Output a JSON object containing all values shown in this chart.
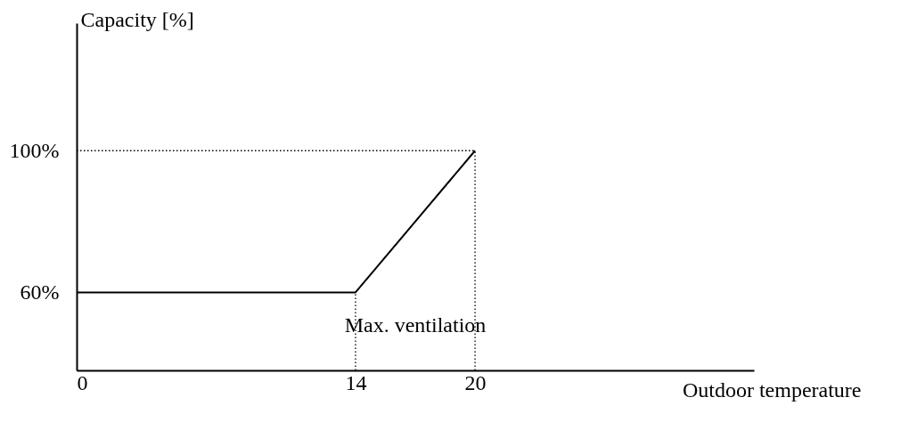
{
  "chart_data": {
    "type": "line",
    "xlabel": "Outdoor temperature",
    "ylabel": "Capacity [%]",
    "x": [
      0,
      14,
      20
    ],
    "series": [
      {
        "color": "#000000",
        "values": [
          60,
          60,
          100
        ]
      }
    ],
    "xlim": [
      0,
      34
    ],
    "xticks": [
      0,
      14,
      20
    ],
    "ylim": [
      38,
      136
    ],
    "yticks": [
      {
        "value": 60,
        "label": "60%"
      },
      {
        "value": 100,
        "label": "100%"
      }
    ],
    "grid": false,
    "line_style": "solid",
    "marker": "none",
    "ref_lines": [
      {
        "axis": "x",
        "value": 14,
        "line_style": "dotted",
        "color": "#000000"
      },
      {
        "axis": "x",
        "value": 20,
        "line_style": "dotted",
        "color": "#000000"
      },
      {
        "axis": "y",
        "value": 100,
        "line_style": "dotted",
        "color": "#000000"
      }
    ],
    "annotations": [
      "Max. ventilation"
    ]
  }
}
